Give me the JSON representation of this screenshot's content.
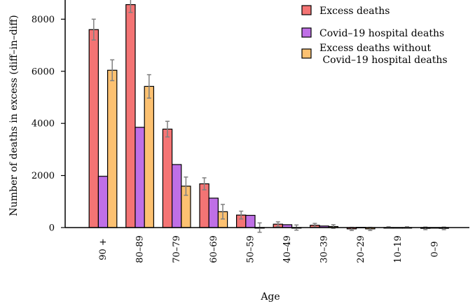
{
  "chart_data": {
    "type": "bar",
    "title": "",
    "xlabel": "Age",
    "ylabel": "Number of deaths in excess (diff–in–diff)",
    "categories": [
      "90 +",
      "80–89",
      "70–79",
      "60–69",
      "50–59",
      "40–49",
      "30–39",
      "20–29",
      "10–19",
      "0–9"
    ],
    "series": [
      {
        "name": "Excess deaths",
        "color": "#f47474",
        "values": [
          7600,
          8560,
          3780,
          1680,
          480,
          130,
          90,
          -50,
          0,
          -30
        ],
        "errors": [
          400,
          300,
          300,
          230,
          150,
          90,
          70,
          60,
          30,
          50
        ]
      },
      {
        "name": "Covid–19 hospital deaths",
        "color": "#bf6fe6",
        "values": [
          1970,
          3850,
          2420,
          1130,
          470,
          110,
          60,
          10,
          0,
          0
        ],
        "errors": null
      },
      {
        "name": "Excess deaths without\n Covid–19 hospital deaths",
        "color": "#fcc171",
        "values": [
          6040,
          5420,
          1590,
          610,
          0,
          0,
          40,
          -50,
          0,
          -30
        ],
        "errors": [
          400,
          450,
          350,
          280,
          180,
          100,
          70,
          60,
          30,
          50
        ]
      }
    ],
    "ylim": [
      -300,
      8800
    ],
    "yticks": [
      0,
      2000,
      4000,
      6000,
      8000
    ],
    "legend_position": "top-right",
    "grid": false
  }
}
